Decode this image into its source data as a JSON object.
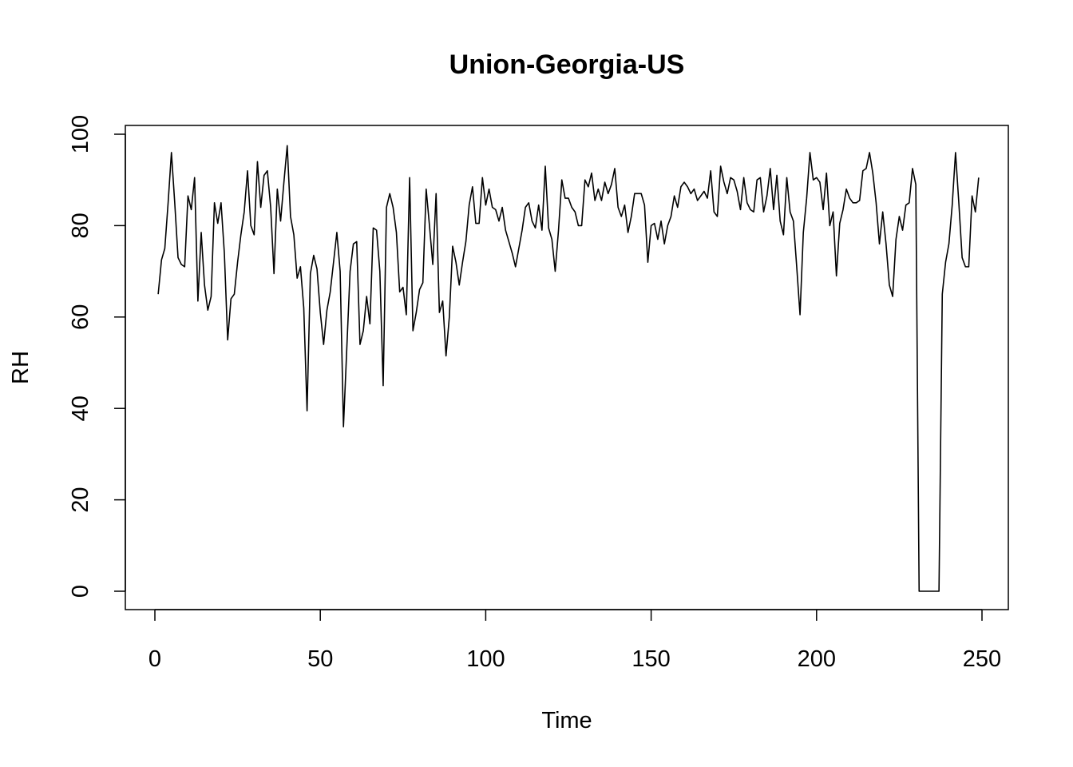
{
  "chart_data": {
    "type": "line",
    "title": "Union-Georgia-US",
    "xlabel": "Time",
    "ylabel": "RH",
    "xlim": [
      1,
      248
    ],
    "ylim": [
      0,
      100
    ],
    "x_ticks": [
      "0",
      "50",
      "100",
      "150",
      "200",
      "250"
    ],
    "y_ticks": [
      "0",
      "20",
      "40",
      "60",
      "80",
      "100"
    ],
    "x_tick_values": [
      0,
      50,
      100,
      150,
      200,
      250
    ],
    "y_tick_values": [
      0,
      20,
      40,
      60,
      80,
      100
    ],
    "grid": false,
    "line_color": "#000000",
    "series": [
      {
        "x_start": 1,
        "values": [
          65,
          72.5,
          75,
          85,
          96,
          85,
          73,
          71.5,
          71,
          86.5,
          83.5,
          90.5,
          63.5,
          78.5,
          67,
          61.5,
          64.5,
          85,
          80.5,
          85,
          74,
          55,
          64,
          65,
          72,
          78,
          83,
          92,
          80,
          78,
          94,
          84,
          91,
          92,
          84,
          69.5,
          88,
          81,
          89.5,
          97.5,
          82,
          78,
          68.5,
          71,
          62,
          39.5,
          69.5,
          73.5,
          70.5,
          61,
          54,
          61.5,
          65.5,
          72,
          78.5,
          70,
          36,
          53,
          70,
          76,
          76.5,
          54,
          57,
          64.5,
          58.5,
          79.5,
          79,
          70,
          45,
          84,
          87,
          84,
          78.5,
          65.5,
          66.5,
          60.5,
          90.5,
          57,
          61,
          66,
          67.5,
          88,
          80,
          71.5,
          87,
          61,
          63.5,
          51.5,
          60,
          75.5,
          72,
          67,
          72,
          76.5,
          84.5,
          88.5,
          80.5,
          80.5,
          90.5,
          84.5,
          88,
          84,
          83.5,
          81,
          84,
          79,
          76.5,
          74,
          71,
          75,
          79,
          84,
          85,
          81,
          79.5,
          84.5,
          79,
          93,
          79.5,
          77,
          70,
          79,
          90,
          86,
          86,
          84,
          83,
          80,
          80,
          90,
          88.5,
          91.5,
          85.5,
          88,
          85.5,
          89.5,
          87,
          89,
          92.5,
          84,
          82,
          84.5,
          78.5,
          82,
          87,
          87,
          87,
          84.5,
          72,
          80,
          80.5,
          77,
          81,
          76,
          80,
          82,
          86.5,
          84,
          88.5,
          89.5,
          88.5,
          87,
          88,
          85.5,
          86.5,
          87.5,
          86,
          92,
          83,
          82,
          93,
          89.5,
          87,
          90.5,
          90,
          87.5,
          83.5,
          90.5,
          85,
          83.5,
          83,
          90,
          90.5,
          83,
          86.5,
          92.5,
          83.5,
          91,
          81,
          78,
          90.5,
          83,
          81,
          71,
          60.5,
          78.5,
          86,
          96,
          90,
          90.5,
          89.5,
          83.5,
          91.5,
          80,
          83,
          69,
          80.5,
          83.5,
          88,
          86,
          85,
          85,
          85.5,
          92,
          92.5,
          96,
          91.5,
          85,
          76,
          83,
          76,
          67,
          64.5,
          77,
          82,
          79,
          84.5,
          85,
          92.5,
          89,
          0,
          0,
          0,
          0,
          0,
          0,
          0,
          65,
          72,
          76,
          84.5,
          96,
          85,
          73,
          71,
          71,
          86.5,
          83,
          90.5
        ]
      }
    ]
  }
}
